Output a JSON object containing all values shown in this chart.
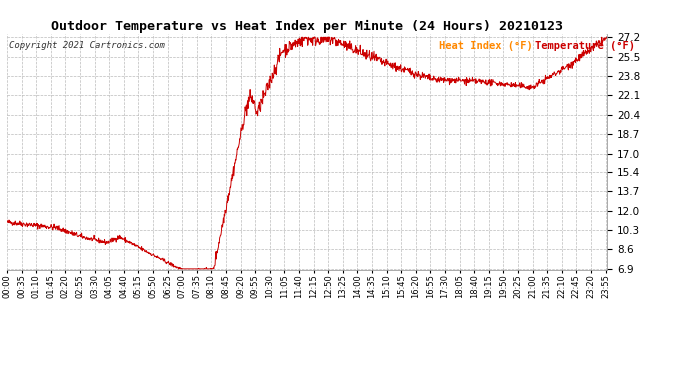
{
  "title": "Outdoor Temperature vs Heat Index per Minute (24 Hours) 20210123",
  "copyright": "Copyright 2021 Cartronics.com",
  "legend_heat": "Heat Index (°F)",
  "legend_temp": "Temperature (°F)",
  "line_color": "#cc0000",
  "heat_index_color": "#ff8800",
  "temp_color": "#cc0000",
  "background_color": "#ffffff",
  "grid_color": "#bbbbbb",
  "title_color": "#000000",
  "yticks": [
    6.9,
    8.6,
    10.3,
    12.0,
    13.7,
    15.4,
    17.0,
    18.7,
    20.4,
    22.1,
    23.8,
    25.5,
    27.2
  ],
  "ymin": 6.9,
  "ymax": 27.2,
  "total_minutes": 1440,
  "figwidth": 6.9,
  "figheight": 3.75,
  "dpi": 100
}
